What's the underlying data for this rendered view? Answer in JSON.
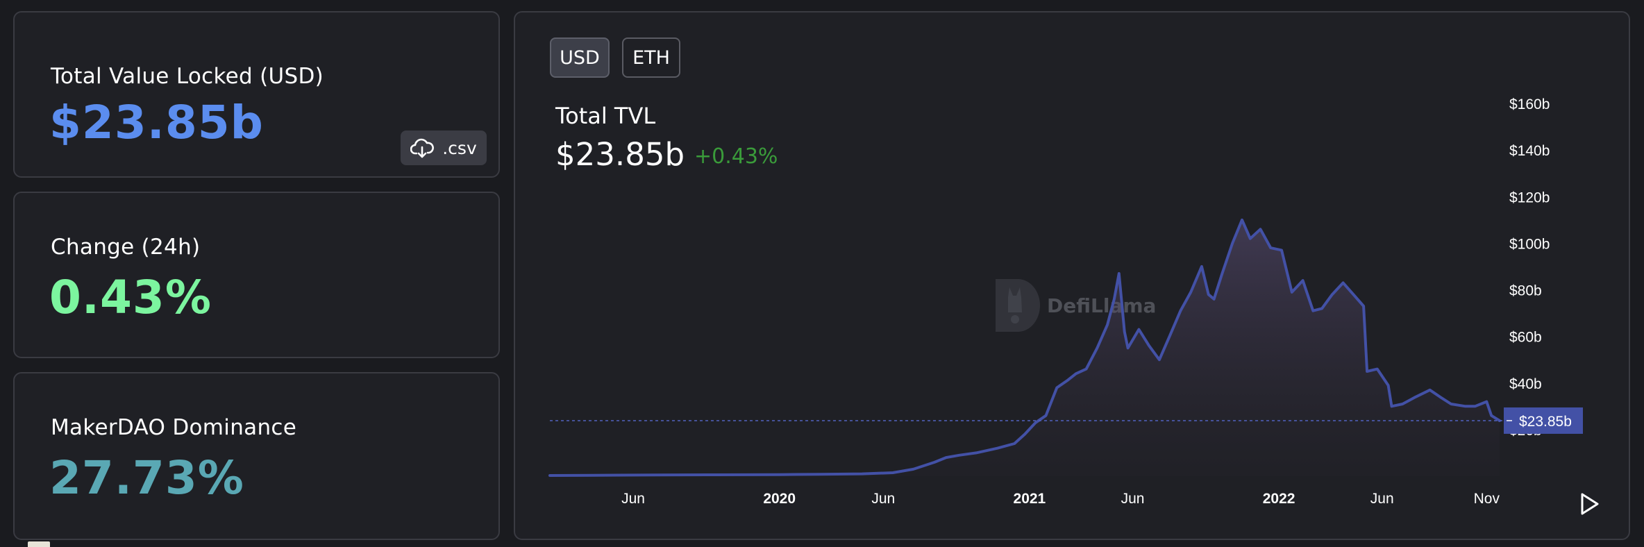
{
  "stats": {
    "tvl": {
      "label": "Total Value Locked (USD)",
      "value": "$23.85b",
      "color": "#5b8def"
    },
    "change": {
      "label": "Change (24h)",
      "value": "0.43%",
      "color": "#7cf59f"
    },
    "dominance": {
      "label": "MakerDAO Dominance",
      "value": "27.73%",
      "color": "#5aa8b4"
    },
    "csv_label": ".csv",
    "csv_icon": "cloud-download-icon"
  },
  "chart_panel": {
    "toggles": [
      {
        "label": "USD",
        "active": true
      },
      {
        "label": "ETH",
        "active": false
      }
    ],
    "title": "Total TVL",
    "value": "$23.85b",
    "change": "+0.43%",
    "change_color": "#3a9b3a",
    "watermark": "DefiLlama",
    "current_marker": "$23.85b",
    "play_icon": "play-icon"
  },
  "chart_data": {
    "type": "area",
    "title": "Total TVL",
    "line_color": "#4351a6",
    "fill_color": "#4351a6",
    "y_unit": "USD (billions)",
    "ylim": [
      0,
      160
    ],
    "y_ticks": [
      20,
      40,
      60,
      80,
      100,
      120,
      140,
      160
    ],
    "y_tick_labels": [
      "$20b",
      "$40b",
      "$60b",
      "$80b",
      "$100b",
      "$120b",
      "$140b",
      "$160b"
    ],
    "x_range": [
      "2019-01-30",
      "2022-11-20"
    ],
    "x_ticks": [
      {
        "date": "2019-06-01",
        "label": "Jun",
        "major": false
      },
      {
        "date": "2020-01-01",
        "label": "2020",
        "major": true
      },
      {
        "date": "2020-06-01",
        "label": "Jun",
        "major": false
      },
      {
        "date": "2021-01-01",
        "label": "2021",
        "major": true
      },
      {
        "date": "2021-06-01",
        "label": "Jun",
        "major": false
      },
      {
        "date": "2022-01-01",
        "label": "2022",
        "major": true
      },
      {
        "date": "2022-06-01",
        "label": "Jun",
        "major": false
      },
      {
        "date": "2022-11-01",
        "label": "Nov",
        "major": false
      }
    ],
    "current_value": 23.85,
    "current_label": "$23.85b",
    "grid": false,
    "series": [
      {
        "points": [
          [
            "2019-01-30",
            0.3
          ],
          [
            "2019-04-01",
            0.4
          ],
          [
            "2019-07-01",
            0.5
          ],
          [
            "2019-10-01",
            0.6
          ],
          [
            "2020-01-01",
            0.7
          ],
          [
            "2020-03-01",
            0.8
          ],
          [
            "2020-05-01",
            1.0
          ],
          [
            "2020-06-15",
            1.5
          ],
          [
            "2020-07-15",
            3.0
          ],
          [
            "2020-08-15",
            6.0
          ],
          [
            "2020-09-01",
            8.0
          ],
          [
            "2020-09-20",
            9.0
          ],
          [
            "2020-10-15",
            10.0
          ],
          [
            "2020-11-15",
            12.0
          ],
          [
            "2020-12-10",
            14.0
          ],
          [
            "2020-12-25",
            18.0
          ],
          [
            "2021-01-10",
            23.0
          ],
          [
            "2021-01-25",
            26.0
          ],
          [
            "2021-02-10",
            38.0
          ],
          [
            "2021-02-25",
            41.0
          ],
          [
            "2021-03-10",
            44.0
          ],
          [
            "2021-03-25",
            46.0
          ],
          [
            "2021-04-10",
            55.0
          ],
          [
            "2021-04-25",
            65.0
          ],
          [
            "2021-05-05",
            76.0
          ],
          [
            "2021-05-12",
            87.0
          ],
          [
            "2021-05-20",
            62.0
          ],
          [
            "2021-05-25",
            55.0
          ],
          [
            "2021-06-10",
            63.0
          ],
          [
            "2021-06-25",
            56.0
          ],
          [
            "2021-07-10",
            50.0
          ],
          [
            "2021-07-25",
            60.0
          ],
          [
            "2021-08-10",
            71.0
          ],
          [
            "2021-08-25",
            79.0
          ],
          [
            "2021-09-10",
            90.0
          ],
          [
            "2021-09-20",
            78.0
          ],
          [
            "2021-09-28",
            76.0
          ],
          [
            "2021-10-10",
            87.0
          ],
          [
            "2021-10-25",
            100.0
          ],
          [
            "2021-11-08",
            110.0
          ],
          [
            "2021-11-20",
            102.0
          ],
          [
            "2021-12-05",
            106.0
          ],
          [
            "2021-12-20",
            98.0
          ],
          [
            "2022-01-05",
            97.0
          ],
          [
            "2022-01-20",
            79.0
          ],
          [
            "2022-02-05",
            84.0
          ],
          [
            "2022-02-20",
            71.0
          ],
          [
            "2022-03-05",
            72.0
          ],
          [
            "2022-03-20",
            78.0
          ],
          [
            "2022-04-05",
            83.0
          ],
          [
            "2022-04-20",
            78.0
          ],
          [
            "2022-05-05",
            73.0
          ],
          [
            "2022-05-10",
            45.0
          ],
          [
            "2022-05-25",
            46.0
          ],
          [
            "2022-06-10",
            39.0
          ],
          [
            "2022-06-15",
            30.0
          ],
          [
            "2022-07-01",
            31.0
          ],
          [
            "2022-07-20",
            34.0
          ],
          [
            "2022-08-10",
            37.0
          ],
          [
            "2022-08-25",
            34.0
          ],
          [
            "2022-09-10",
            31.0
          ],
          [
            "2022-10-01",
            30.0
          ],
          [
            "2022-10-15",
            30.0
          ],
          [
            "2022-11-01",
            32.0
          ],
          [
            "2022-11-08",
            26.0
          ],
          [
            "2022-11-20",
            23.85
          ]
        ]
      }
    ]
  }
}
